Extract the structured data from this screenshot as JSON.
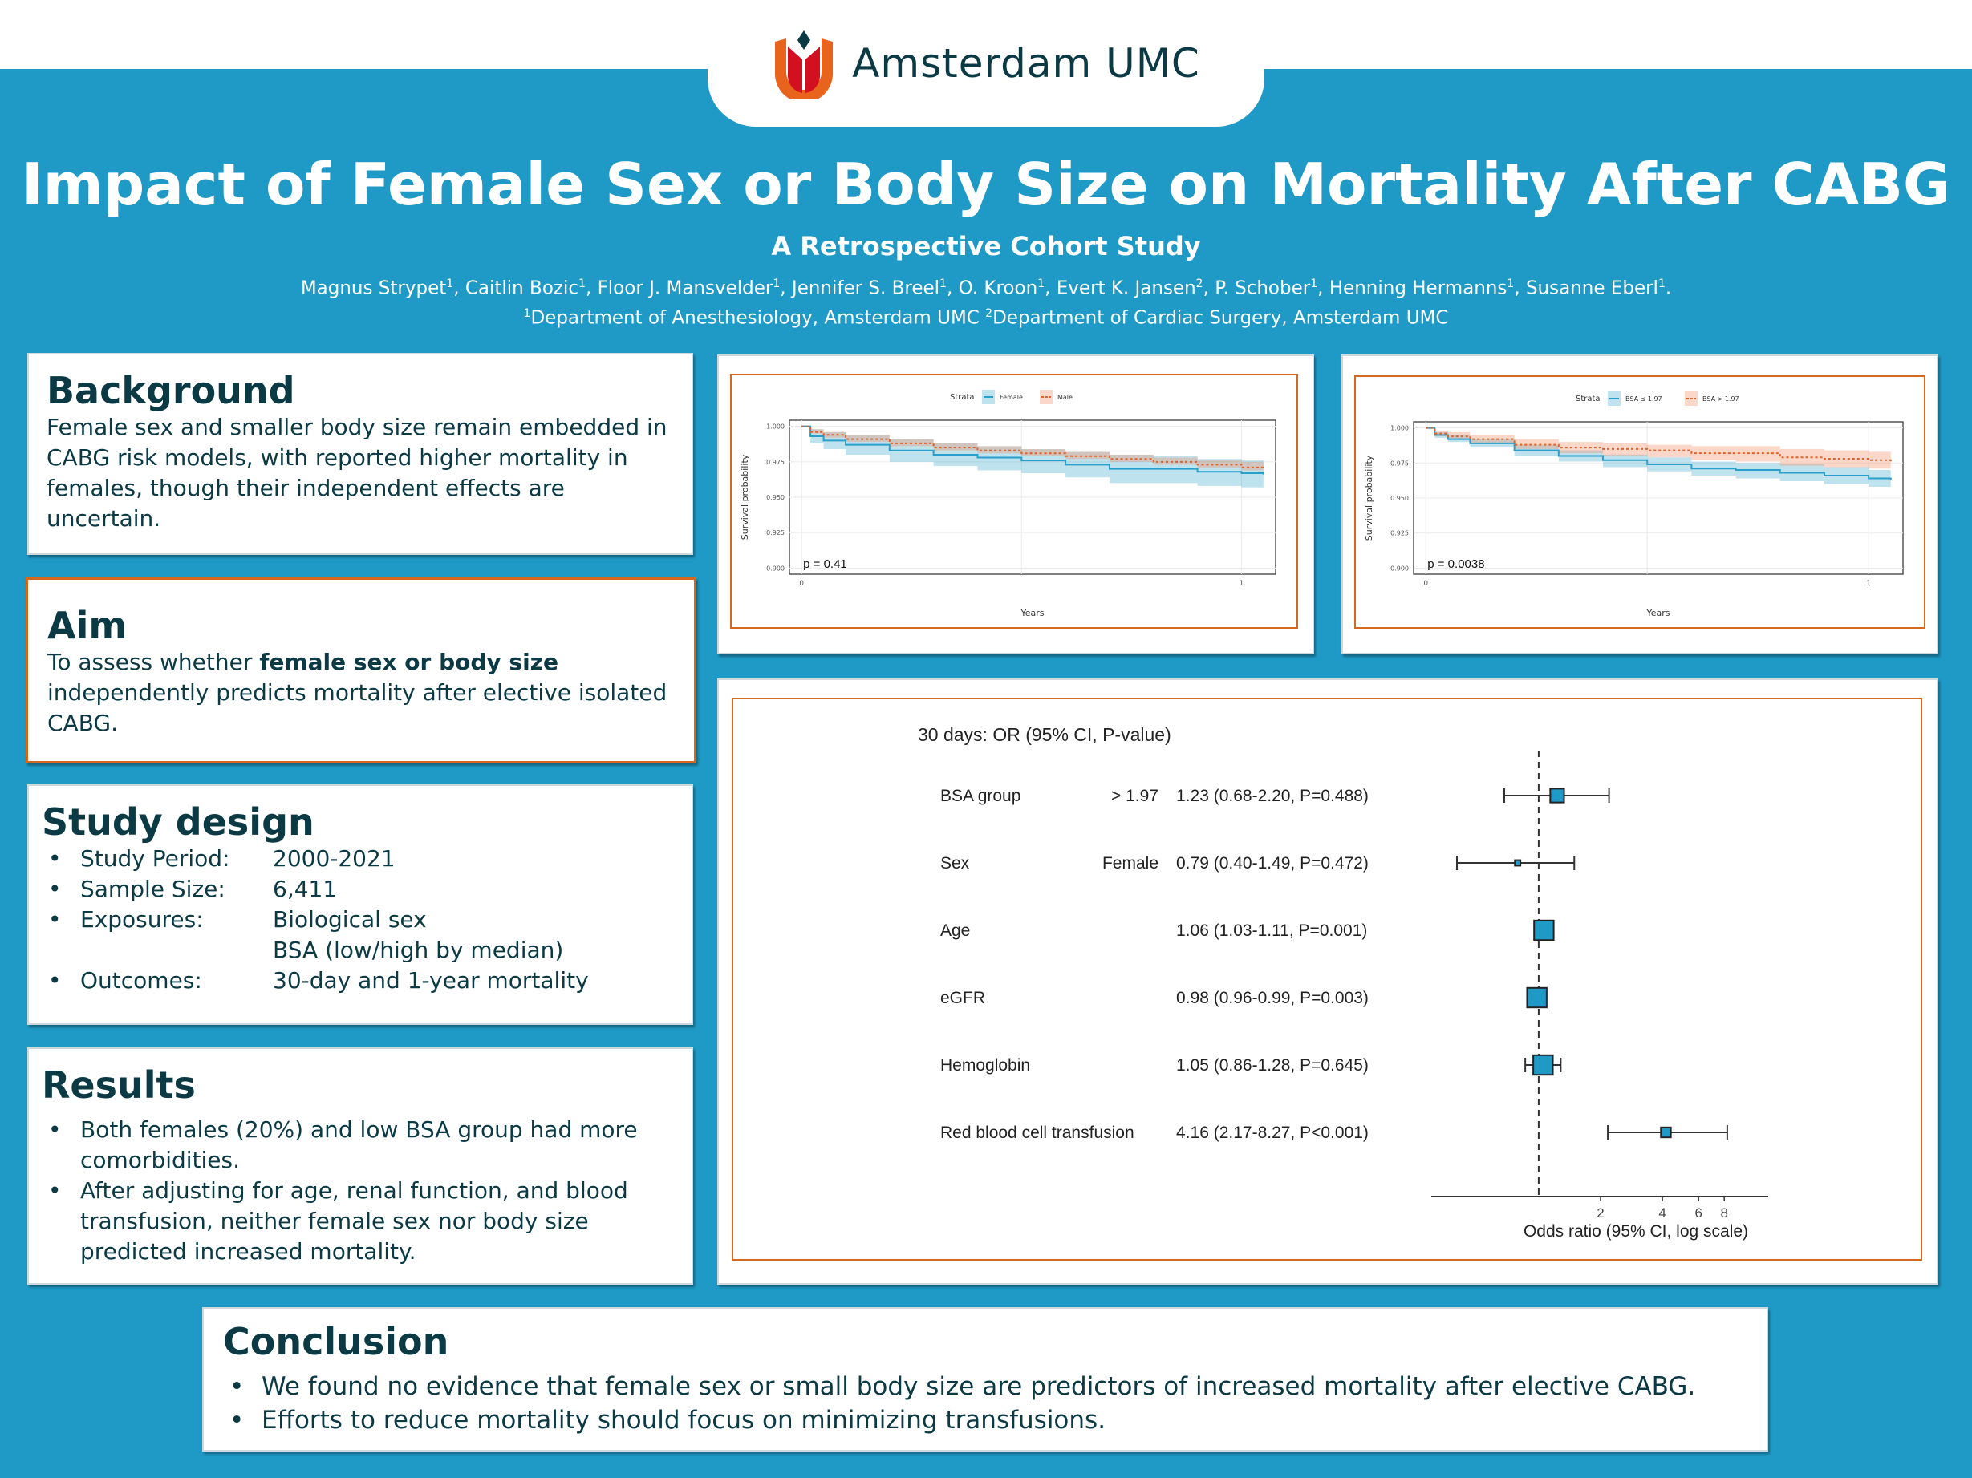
{
  "header": {
    "logo_text": "Amsterdam UMC",
    "title": "Impact of Female Sex or Body Size on Mortality After CABG",
    "subtitle": "A Retrospective Cohort Study",
    "authors": [
      {
        "name": "Magnus Strypet",
        "aff": "1"
      },
      {
        "name": "Caitlin Bozic",
        "aff": "1"
      },
      {
        "name": "Floor J. Mansvelder",
        "aff": "1"
      },
      {
        "name": "Jennifer S. Breel",
        "aff": "1"
      },
      {
        "name": "O. Kroon",
        "aff": "1"
      },
      {
        "name": "Evert K. Jansen",
        "aff": "2"
      },
      {
        "name": "P. Schober",
        "aff": "1"
      },
      {
        "name": "Henning Hermanns",
        "aff": "1"
      },
      {
        "name": "Susanne Eberl",
        "aff": "1"
      }
    ],
    "affiliations": [
      {
        "num": "1",
        "text": "Department of Anesthesiology, Amsterdam UMC"
      },
      {
        "num": "2",
        "text": "Department of Cardiac Surgery, Amsterdam UMC"
      }
    ]
  },
  "background": {
    "heading": "Background",
    "text": "Female sex and smaller body size remain embedded in CABG risk models, with reported higher mortality in females, though their independent effects are uncertain."
  },
  "aim": {
    "heading": "Aim",
    "text_pre": "To assess whether ",
    "text_bold": "female sex or body size",
    "text_post": " independently predicts mortality after elective isolated CABG."
  },
  "study_design": {
    "heading": "Study design",
    "items": [
      {
        "key": "Study Period:",
        "values": [
          "2000-2021"
        ]
      },
      {
        "key": "Sample Size:",
        "values": [
          "6,411"
        ]
      },
      {
        "key": "Exposures:",
        "values": [
          "Biological sex",
          "BSA (low/high by median)"
        ]
      },
      {
        "key": "Outcomes:",
        "values": [
          "30-day and 1-year mortality"
        ]
      }
    ]
  },
  "results": {
    "heading": "Results",
    "items": [
      "Both females (20%) and low BSA group had more comorbidities.",
      "After adjusting for age, renal function, and blood transfusion, neither female sex nor body size predicted increased mortality."
    ]
  },
  "conclusion": {
    "heading": "Conclusion",
    "items": [
      "We found no evidence that female sex or small body size are predictors of increased mortality after elective CABG.",
      "Efforts to reduce mortality should focus on minimizing transfusions."
    ]
  },
  "colors": {
    "band": "#1f9ac7",
    "heading": "#0b3a45",
    "accent_orange": "#d2691e",
    "series_blue": "#2a9fc9",
    "series_orange": "#e0632a"
  },
  "chart_data": [
    {
      "type": "line",
      "title": "Kaplan-Meier survival by sex",
      "legend_title": "Strata",
      "legend_position": "top",
      "xlabel": "Years",
      "ylabel": "Survival probability",
      "xlim": [
        0,
        1.05
      ],
      "ylim": [
        0.9,
        1.0
      ],
      "xticks": [
        "0",
        "1"
      ],
      "yticks": [
        "0.900",
        "0.925",
        "0.950",
        "0.975",
        "1.000"
      ],
      "annotation": "p = 0.41",
      "series": [
        {
          "name": "Female",
          "style": "solid",
          "x": [
            0,
            0.02,
            0.05,
            0.1,
            0.2,
            0.3,
            0.4,
            0.5,
            0.6,
            0.7,
            0.8,
            0.9,
            1.0,
            1.05
          ],
          "y": [
            1.0,
            0.993,
            0.99,
            0.987,
            0.983,
            0.98,
            0.978,
            0.976,
            0.973,
            0.97,
            0.97,
            0.968,
            0.967,
            0.966
          ],
          "lower": [
            1.0,
            0.988,
            0.984,
            0.98,
            0.975,
            0.972,
            0.969,
            0.967,
            0.964,
            0.96,
            0.96,
            0.958,
            0.957,
            0.956
          ],
          "upper": [
            1.0,
            0.998,
            0.996,
            0.994,
            0.991,
            0.988,
            0.986,
            0.984,
            0.982,
            0.98,
            0.979,
            0.977,
            0.976,
            0.975
          ]
        },
        {
          "name": "Male",
          "style": "dashed",
          "x": [
            0,
            0.02,
            0.05,
            0.1,
            0.2,
            0.3,
            0.4,
            0.5,
            0.6,
            0.7,
            0.8,
            0.9,
            1.0,
            1.05
          ],
          "y": [
            1.0,
            0.996,
            0.994,
            0.991,
            0.988,
            0.985,
            0.983,
            0.981,
            0.979,
            0.977,
            0.975,
            0.973,
            0.971,
            0.97
          ],
          "lower": [
            1.0,
            0.995,
            0.992,
            0.989,
            0.986,
            0.983,
            0.981,
            0.979,
            0.977,
            0.975,
            0.973,
            0.971,
            0.969,
            0.968
          ],
          "upper": [
            1.0,
            0.998,
            0.996,
            0.994,
            0.991,
            0.988,
            0.986,
            0.984,
            0.982,
            0.98,
            0.978,
            0.976,
            0.975,
            0.974
          ]
        }
      ]
    },
    {
      "type": "line",
      "title": "Kaplan-Meier survival by BSA",
      "legend_title": "Strata",
      "legend_position": "top",
      "xlabel": "Years",
      "ylabel": "Survival probability",
      "xlim": [
        0,
        1.05
      ],
      "ylim": [
        0.9,
        1.0
      ],
      "xticks": [
        "0",
        "1"
      ],
      "yticks": [
        "0.900",
        "0.925",
        "0.950",
        "0.975",
        "1.000"
      ],
      "annotation": "p = 0.0038",
      "series": [
        {
          "name": "BSA ≤ 1.97",
          "style": "solid",
          "x": [
            0,
            0.02,
            0.05,
            0.1,
            0.2,
            0.3,
            0.4,
            0.5,
            0.6,
            0.7,
            0.8,
            0.9,
            1.0,
            1.05
          ],
          "y": [
            1.0,
            0.995,
            0.992,
            0.989,
            0.984,
            0.98,
            0.977,
            0.974,
            0.971,
            0.97,
            0.968,
            0.966,
            0.964,
            0.963
          ],
          "lower": [
            1.0,
            0.993,
            0.99,
            0.986,
            0.98,
            0.976,
            0.972,
            0.969,
            0.966,
            0.964,
            0.962,
            0.96,
            0.958,
            0.957
          ],
          "upper": [
            1.0,
            0.997,
            0.995,
            0.992,
            0.988,
            0.984,
            0.981,
            0.979,
            0.976,
            0.975,
            0.974,
            0.972,
            0.97,
            0.969
          ]
        },
        {
          "name": "BSA > 1.97",
          "style": "dashed",
          "x": [
            0,
            0.02,
            0.05,
            0.1,
            0.2,
            0.3,
            0.4,
            0.5,
            0.6,
            0.7,
            0.8,
            0.9,
            1.0,
            1.05
          ],
          "y": [
            1.0,
            0.996,
            0.994,
            0.992,
            0.988,
            0.986,
            0.985,
            0.984,
            0.982,
            0.982,
            0.979,
            0.978,
            0.977,
            0.976
          ],
          "lower": [
            1.0,
            0.994,
            0.992,
            0.989,
            0.985,
            0.982,
            0.98,
            0.979,
            0.977,
            0.976,
            0.973,
            0.972,
            0.971,
            0.97
          ],
          "upper": [
            1.0,
            0.998,
            0.997,
            0.995,
            0.992,
            0.99,
            0.989,
            0.988,
            0.987,
            0.987,
            0.985,
            0.984,
            0.983,
            0.982
          ]
        }
      ]
    },
    {
      "type": "forest",
      "title": "30 days: OR (95% CI, P-value)",
      "xlabel": "Odds ratio (95% CI, log scale)",
      "xscale": "log",
      "xlim": [
        0.3,
        10
      ],
      "xticks": [
        2,
        4,
        6,
        8
      ],
      "reference_line": 1,
      "rows": [
        {
          "variable": "BSA group",
          "level": "> 1.97",
          "label": "1.23 (0.68-2.20, P=0.488)",
          "or": 1.23,
          "lo": 0.68,
          "hi": 2.2,
          "weight": 0.55
        },
        {
          "variable": "Sex",
          "level": "Female",
          "label": "0.79 (0.40-1.49, P=0.472)",
          "or": 0.79,
          "lo": 0.4,
          "hi": 1.49,
          "weight": 0.12
        },
        {
          "variable": "Age",
          "level": "",
          "label": "1.06 (1.03-1.11, P=0.001)",
          "or": 1.06,
          "lo": 1.03,
          "hi": 1.11,
          "weight": 0.85
        },
        {
          "variable": "eGFR",
          "level": "",
          "label": "0.98 (0.96-0.99, P=0.003)",
          "or": 0.98,
          "lo": 0.96,
          "hi": 0.99,
          "weight": 0.85
        },
        {
          "variable": "Hemoglobin",
          "level": "",
          "label": "1.05 (0.86-1.28, P=0.645)",
          "or": 1.05,
          "lo": 0.86,
          "hi": 1.28,
          "weight": 0.85
        },
        {
          "variable": "Red blood cell transfusion",
          "level": "",
          "label": "4.16 (2.17-8.27, P<0.001)",
          "or": 4.16,
          "lo": 2.17,
          "hi": 8.27,
          "weight": 0.35
        }
      ]
    }
  ]
}
